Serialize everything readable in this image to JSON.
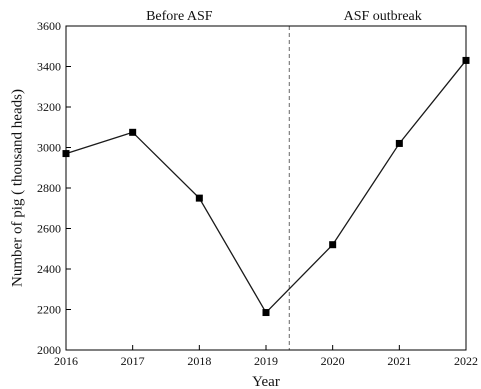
{
  "chart_data": {
    "type": "line",
    "title": "",
    "xlabel": "Year",
    "ylabel": "Number of pig ( thousand heads)",
    "x": [
      2016,
      2017,
      2018,
      2019,
      2020,
      2021,
      2022
    ],
    "series": [
      {
        "values": [
          2970,
          3075,
          2750,
          2185,
          2520,
          3020,
          3430
        ]
      }
    ],
    "xlim": [
      2016,
      2022
    ],
    "ylim": [
      2000,
      3600
    ],
    "x_ticks": [
      "2016",
      "2017",
      "2018",
      "2019",
      "2020",
      "2021",
      "2022"
    ],
    "y_ticks": [
      "2000",
      "2200",
      "2400",
      "2600",
      "2800",
      "3000",
      "3200",
      "3400",
      "3600"
    ],
    "divider_x": 2019.35,
    "annotations": [
      {
        "text": "Before ASF",
        "x": 2017.7
      },
      {
        "text": "ASF outbreak",
        "x": 2020.75
      }
    ],
    "grid": false,
    "legend": "none",
    "colors": {
      "line": "#1a1a1a",
      "marker": "#000000",
      "axis": "#000000",
      "divider": "#808080"
    }
  }
}
